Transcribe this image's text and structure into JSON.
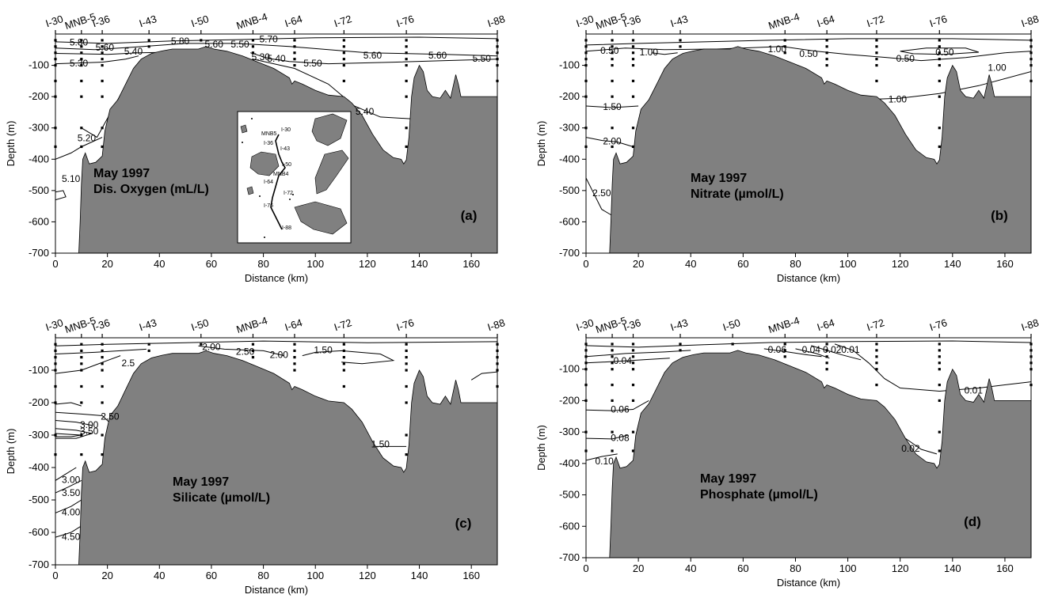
{
  "chart_data": [
    {
      "type": "contour",
      "panel_label": "(a)",
      "annotation": [
        "May 1997",
        "Dis. Oxygen (mL/L)"
      ],
      "xlabel": "Distance (km)",
      "ylabel": "Depth (m)",
      "xlim": [
        0,
        170
      ],
      "ylim": [
        -700,
        0
      ],
      "xticks": [
        "0",
        "20",
        "40",
        "60",
        "80",
        "100",
        "120",
        "140",
        "160"
      ],
      "yticks": [
        "-100",
        "-200",
        "-300",
        "-400",
        "-500",
        "-600",
        "-700"
      ],
      "stations": [
        {
          "name": "I-30",
          "x": 0
        },
        {
          "name": "MNB-5",
          "x": 10
        },
        {
          "name": "I-36",
          "x": 18
        },
        {
          "name": "I-43",
          "x": 36
        },
        {
          "name": "I-50",
          "x": 56
        },
        {
          "name": "MNB-4",
          "x": 76
        },
        {
          "name": "I-64",
          "x": 92
        },
        {
          "name": "I-72",
          "x": 111
        },
        {
          "name": "I-76",
          "x": 135
        },
        {
          "name": "I-88",
          "x": 170
        }
      ],
      "contour_labels": [
        {
          "text": "5.80",
          "x": 9,
          "y": -28
        },
        {
          "text": "5.60",
          "x": 19,
          "y": -45
        },
        {
          "text": "5.40",
          "x": 30,
          "y": -58
        },
        {
          "text": "5.30",
          "x": 9,
          "y": -95
        },
        {
          "text": "5.80",
          "x": 48,
          "y": -25
        },
        {
          "text": "5.60",
          "x": 61,
          "y": -35
        },
        {
          "text": "5.50",
          "x": 71,
          "y": -35
        },
        {
          "text": "5.70",
          "x": 82,
          "y": -18
        },
        {
          "text": "5.30",
          "x": 79,
          "y": -75
        },
        {
          "text": "5.40",
          "x": 85,
          "y": -80
        },
        {
          "text": "5.50",
          "x": 99,
          "y": -95
        },
        {
          "text": "5.60",
          "x": 122,
          "y": -70
        },
        {
          "text": "5.60",
          "x": 147,
          "y": -70
        },
        {
          "text": "5.50",
          "x": 164,
          "y": -80
        },
        {
          "text": "5.40",
          "x": 119,
          "y": -250
        },
        {
          "text": "5.20",
          "x": 12,
          "y": -335
        },
        {
          "text": "5.10",
          "x": 6,
          "y": -465
        }
      ],
      "inset_map_labels": [
        "MNB5",
        "I-30",
        "I-36",
        "I-43",
        "I-50",
        "MNB4",
        "I-64",
        "I-72",
        "I-76",
        "I-88"
      ]
    },
    {
      "type": "contour",
      "panel_label": "(b)",
      "annotation": [
        "May 1997",
        "Nitrate (µmol/L)"
      ],
      "xlabel": "Distance (km)",
      "ylabel": "Depth (m)",
      "xlim": [
        0,
        170
      ],
      "ylim": [
        -700,
        0
      ],
      "xticks": [
        "0",
        "20",
        "40",
        "60",
        "80",
        "100",
        "120",
        "140",
        "160"
      ],
      "yticks": [
        "-100",
        "-200",
        "-300",
        "-400",
        "-500",
        "-600",
        "-700"
      ],
      "stations": [
        {
          "name": "I-30",
          "x": 0
        },
        {
          "name": "MNB-5",
          "x": 10
        },
        {
          "name": "I-36",
          "x": 18
        },
        {
          "name": "I-43",
          "x": 36
        },
        {
          "name": "MNB-4",
          "x": 76
        },
        {
          "name": "I-64",
          "x": 92
        },
        {
          "name": "I-72",
          "x": 111
        },
        {
          "name": "I-76",
          "x": 135
        },
        {
          "name": "I-88",
          "x": 170
        }
      ],
      "contour_labels": [
        {
          "text": "0.50",
          "x": 9,
          "y": -55
        },
        {
          "text": "1.00",
          "x": 24,
          "y": -60
        },
        {
          "text": "1.00",
          "x": 73,
          "y": -50
        },
        {
          "text": "0.50",
          "x": 85,
          "y": -65
        },
        {
          "text": "0.50",
          "x": 137,
          "y": -60
        },
        {
          "text": "0.50",
          "x": 122,
          "y": -80
        },
        {
          "text": "1.00",
          "x": 157,
          "y": -110
        },
        {
          "text": "1.00",
          "x": 119,
          "y": -210
        },
        {
          "text": "1.50",
          "x": 10,
          "y": -235
        },
        {
          "text": "2.00",
          "x": 10,
          "y": -345
        },
        {
          "text": "2.50",
          "x": 6,
          "y": -510
        }
      ]
    },
    {
      "type": "contour",
      "panel_label": "(c)",
      "annotation": [
        "May 1997",
        "Silicate (µmol/L)"
      ],
      "xlabel": "Distance (km)",
      "ylabel": "Depth (m)",
      "xlim": [
        0,
        170
      ],
      "ylim": [
        -700,
        0
      ],
      "xticks": [
        "0",
        "20",
        "40",
        "60",
        "80",
        "100",
        "120",
        "140",
        "160"
      ],
      "yticks": [
        "-100",
        "-200",
        "-300",
        "-400",
        "-500",
        "-600",
        "-700"
      ],
      "stations": [
        {
          "name": "I-30",
          "x": 0
        },
        {
          "name": "MNB-5",
          "x": 10
        },
        {
          "name": "I-36",
          "x": 18
        },
        {
          "name": "I-43",
          "x": 36
        },
        {
          "name": "I-50",
          "x": 56
        },
        {
          "name": "MNB-4",
          "x": 76
        },
        {
          "name": "I-64",
          "x": 92
        },
        {
          "name": "I-72",
          "x": 111
        },
        {
          "name": "I-76",
          "x": 135
        },
        {
          "name": "I-88",
          "x": 170
        }
      ],
      "contour_labels": [
        {
          "text": "2.5",
          "x": 28,
          "y": -80
        },
        {
          "text": "2.00",
          "x": 60,
          "y": -30
        },
        {
          "text": "2.50",
          "x": 73,
          "y": -45
        },
        {
          "text": "2.00",
          "x": 86,
          "y": -55
        },
        {
          "text": "1.50",
          "x": 103,
          "y": -40
        },
        {
          "text": "3.00",
          "x": 13,
          "y": -270
        },
        {
          "text": "3.50",
          "x": 13,
          "y": -290
        },
        {
          "text": "2.50",
          "x": 21,
          "y": -245
        },
        {
          "text": "1.50",
          "x": 125,
          "y": -330
        },
        {
          "text": "3.00",
          "x": 6,
          "y": -440
        },
        {
          "text": "3.50",
          "x": 6,
          "y": -480
        },
        {
          "text": "4.00",
          "x": 6,
          "y": -540
        },
        {
          "text": "4.50",
          "x": 6,
          "y": -615
        }
      ]
    },
    {
      "type": "contour",
      "panel_label": "(d)",
      "annotation": [
        "May 1997",
        "Phosphate (µmol/L)"
      ],
      "xlabel": "Distance (km)",
      "ylabel": "Depth (m)",
      "xlim": [
        0,
        170
      ],
      "ylim": [
        -700,
        0
      ],
      "xticks": [
        "0",
        "20",
        "40",
        "60",
        "80",
        "100",
        "120",
        "140",
        "160"
      ],
      "yticks": [
        "-100",
        "-200",
        "-300",
        "-400",
        "-500",
        "-600",
        "-700"
      ],
      "stations": [
        {
          "name": "I-30",
          "x": 0
        },
        {
          "name": "MNB-5",
          "x": 10
        },
        {
          "name": "I-36",
          "x": 18
        },
        {
          "name": "I-43",
          "x": 36
        },
        {
          "name": "I-50",
          "x": 56
        },
        {
          "name": "MNB-4",
          "x": 76
        },
        {
          "name": "I-64",
          "x": 92
        },
        {
          "name": "I-72",
          "x": 111
        },
        {
          "name": "I-76",
          "x": 135
        },
        {
          "name": "I-88",
          "x": 170
        }
      ],
      "contour_labels": [
        {
          "text": "0.04",
          "x": 14,
          "y": -75
        },
        {
          "text": "0.06",
          "x": 73,
          "y": -40
        },
        {
          "text": "0.04",
          "x": 86,
          "y": -40
        },
        {
          "text": "0.02",
          "x": 94,
          "y": -40
        },
        {
          "text": "0.01",
          "x": 101,
          "y": -40
        },
        {
          "text": "0.01",
          "x": 148,
          "y": -170
        },
        {
          "text": "0.02",
          "x": 124,
          "y": -355
        },
        {
          "text": "0.06",
          "x": 13,
          "y": -230
        },
        {
          "text": "0.08",
          "x": 13,
          "y": -320
        },
        {
          "text": "0.10",
          "x": 7,
          "y": -395
        }
      ]
    }
  ]
}
